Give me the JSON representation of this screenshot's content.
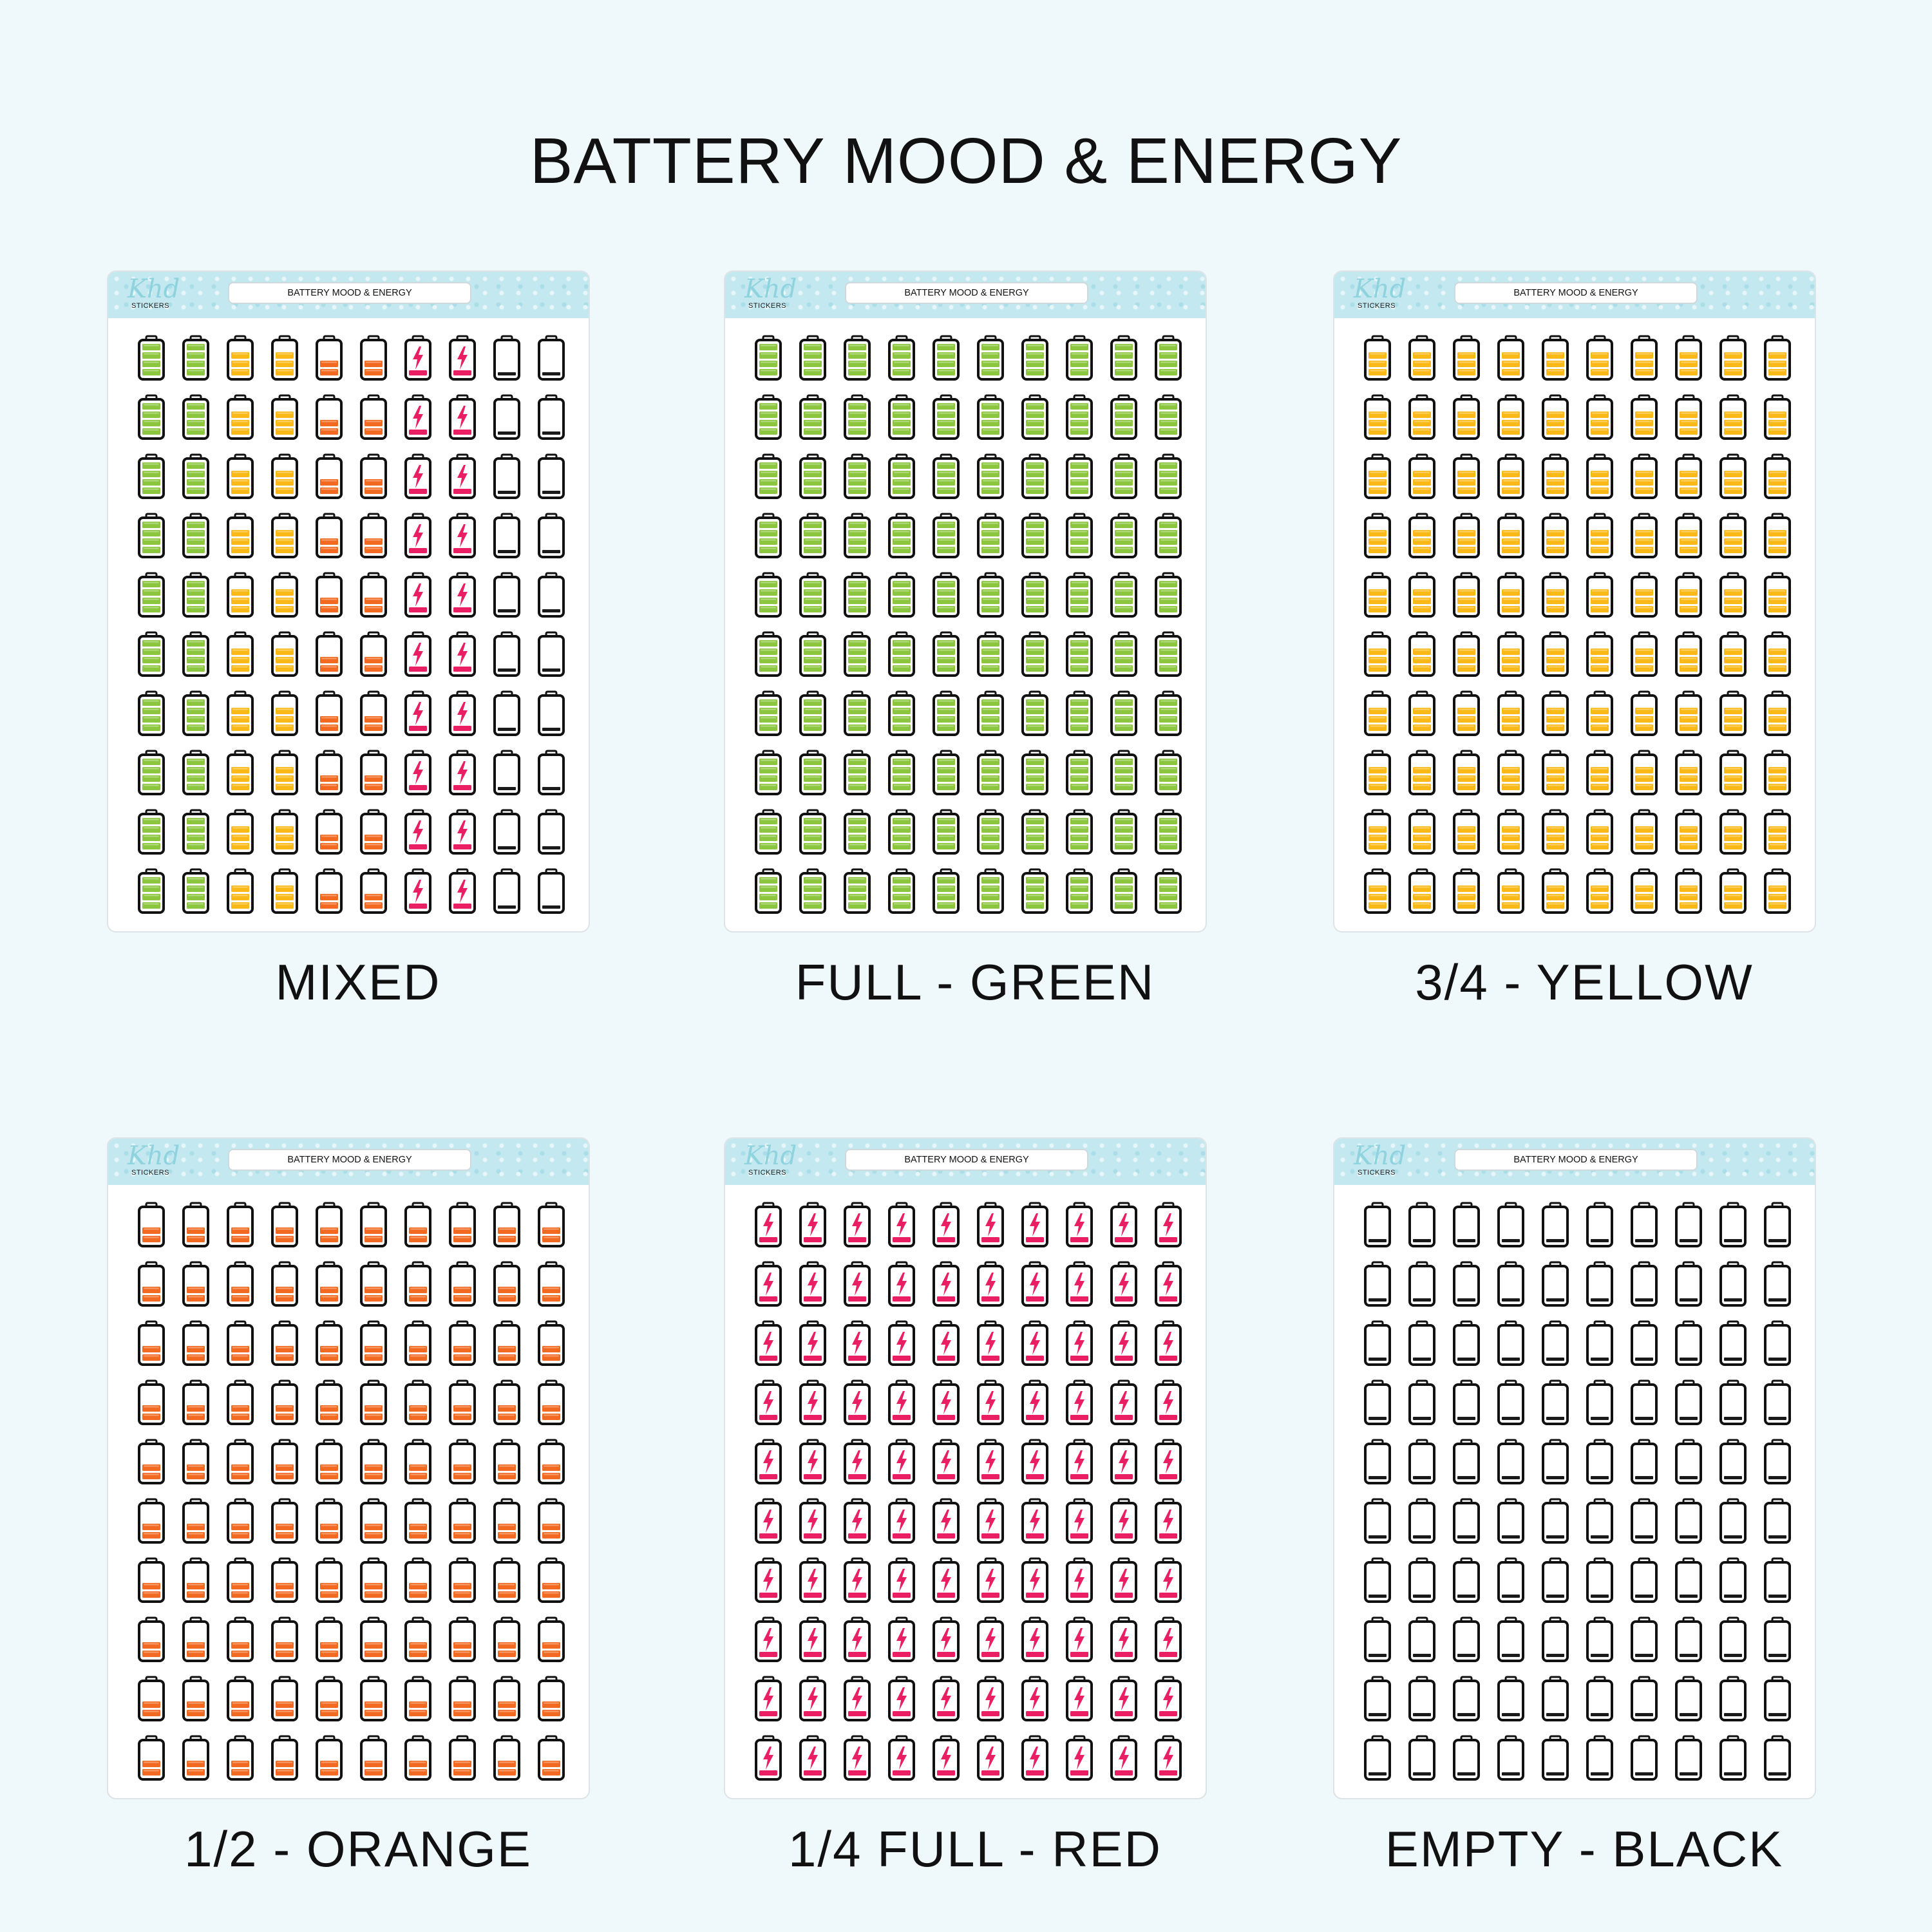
{
  "title": "BATTERY MOOD & ENERGY",
  "sheets": [
    {
      "id": "mixed",
      "header_label": "BATTERY MOOD & ENERGY",
      "brand": "Khd",
      "brand_sub": "STICKERS",
      "caption": "MIXED",
      "columns": [
        "full",
        "full",
        "three-quarter",
        "three-quarter",
        "half",
        "half",
        "quarter",
        "quarter",
        "empty",
        "empty"
      ],
      "rows": 10
    },
    {
      "id": "full-green",
      "header_label": "BATTERY MOOD & ENERGY",
      "brand": "Khd",
      "brand_sub": "STICKERS",
      "caption": "FULL - GREEN",
      "columns": [
        "full",
        "full",
        "full",
        "full",
        "full",
        "full",
        "full",
        "full",
        "full",
        "full"
      ],
      "rows": 10
    },
    {
      "id": "three-quarter-yellow",
      "header_label": "BATTERY MOOD & ENERGY",
      "brand": "Khd",
      "brand_sub": "STICKERS",
      "caption": "3/4 - YELLOW",
      "columns": [
        "three-quarter",
        "three-quarter",
        "three-quarter",
        "three-quarter",
        "three-quarter",
        "three-quarter",
        "three-quarter",
        "three-quarter",
        "three-quarter",
        "three-quarter"
      ],
      "rows": 10
    },
    {
      "id": "half-orange",
      "header_label": "BATTERY MOOD & ENERGY",
      "brand": "Khd",
      "brand_sub": "STICKERS",
      "caption": "1/2 - ORANGE",
      "columns": [
        "half",
        "half",
        "half",
        "half",
        "half",
        "half",
        "half",
        "half",
        "half",
        "half"
      ],
      "rows": 10
    },
    {
      "id": "quarter-red",
      "header_label": "BATTERY MOOD & ENERGY",
      "brand": "Khd",
      "brand_sub": "STICKERS",
      "caption": "1/4 FULL - RED",
      "columns": [
        "quarter",
        "quarter",
        "quarter",
        "quarter",
        "quarter",
        "quarter",
        "quarter",
        "quarter",
        "quarter",
        "quarter"
      ],
      "rows": 10
    },
    {
      "id": "empty-black",
      "header_label": "BATTERY MOOD & ENERGY",
      "brand": "Khd",
      "brand_sub": "STICKERS",
      "caption": "EMPTY - BLACK",
      "columns": [
        "empty",
        "empty",
        "empty",
        "empty",
        "empty",
        "empty",
        "empty",
        "empty",
        "empty",
        "empty"
      ],
      "rows": 10
    }
  ],
  "battery_types": {
    "full": {
      "icon": "battery-full-icon",
      "color": "#8cc63f",
      "level": 1.0,
      "bolt": false
    },
    "three-quarter": {
      "icon": "battery-three-quarter-icon",
      "color": "#fbb917",
      "level": 0.75,
      "bolt": false
    },
    "half": {
      "icon": "battery-half-icon",
      "color": "#f26a21",
      "level": 0.5,
      "bolt": false
    },
    "quarter": {
      "icon": "battery-quarter-charging-icon",
      "color": "#e91e63",
      "level": 0.25,
      "bolt": true
    },
    "empty": {
      "icon": "battery-empty-icon",
      "color": "#1a1a1a",
      "level": 0.0,
      "bolt": false
    }
  },
  "colors": {
    "background": "#eff8fa",
    "header_pattern": "#c4e8ef",
    "outline": "#111111"
  }
}
